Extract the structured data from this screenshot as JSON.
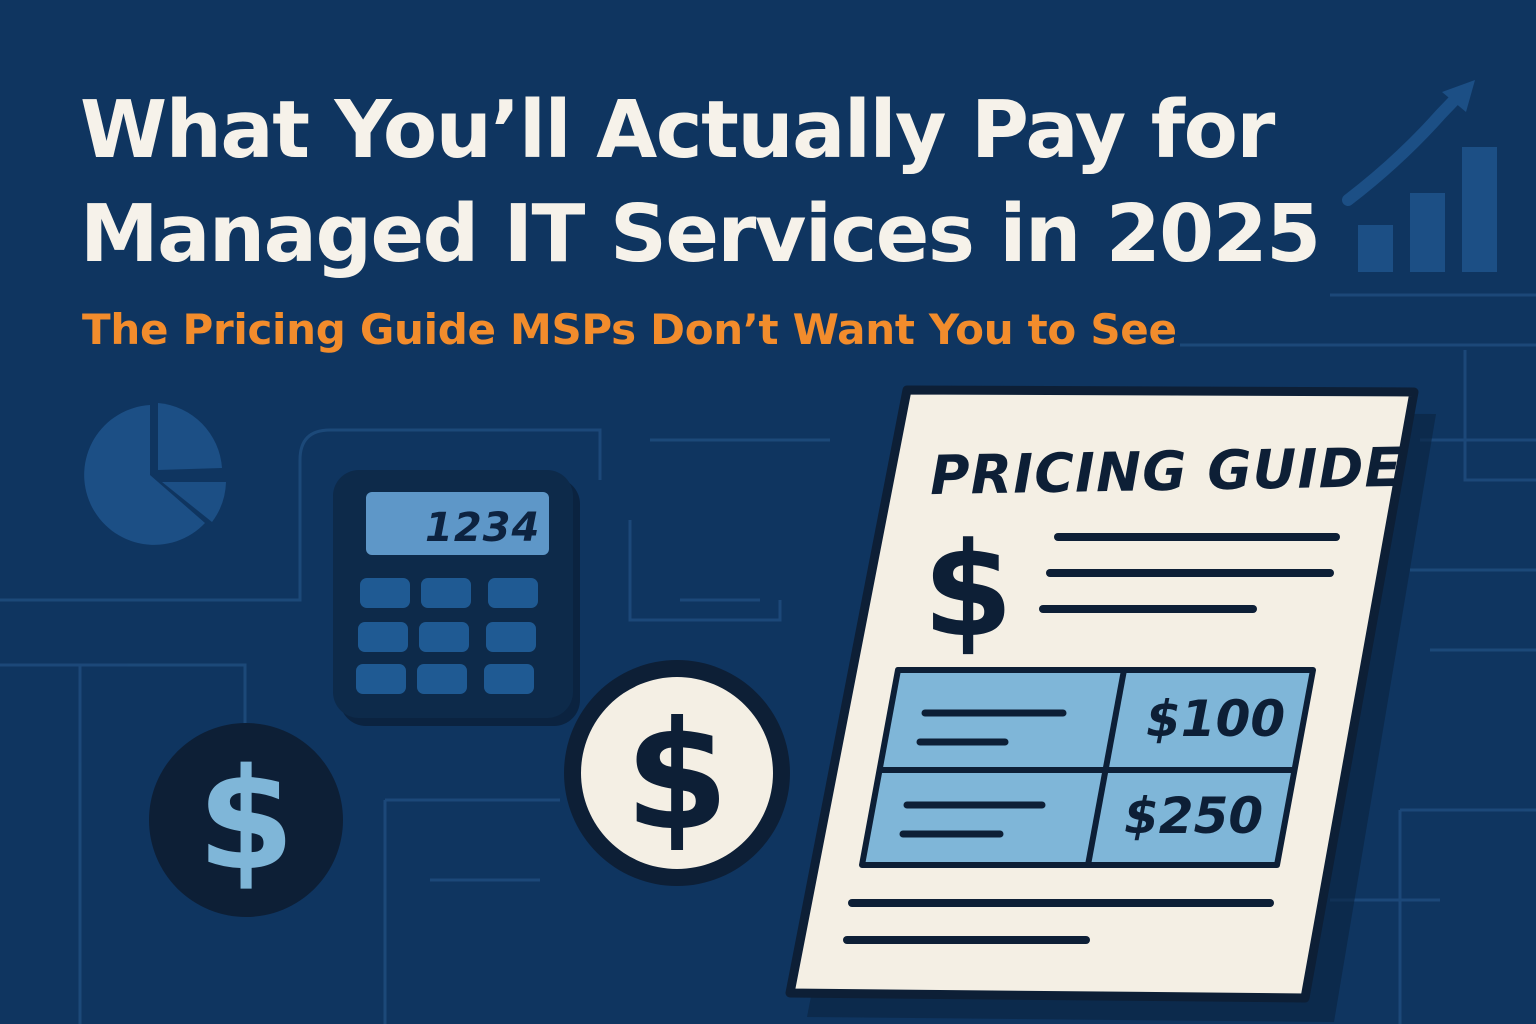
{
  "banner": {
    "headline_line1": "What You’ll Actually Pay for",
    "headline_line2": "Managed IT Services in 2025",
    "subheadline": "The Pricing Guide MSPs Don’t Want You to See"
  },
  "calculator": {
    "display": "1234"
  },
  "document": {
    "title": "PRICING GUIDE",
    "prices": [
      "$100",
      "$250"
    ]
  },
  "icons": [
    "pie-chart-icon",
    "bar-chart-icon",
    "trend-arrow-icon",
    "calculator-icon",
    "dollar-coin-icon",
    "dollar-sign-icon",
    "pricing-document-icon"
  ],
  "colors": {
    "background": "#0f3560",
    "headline": "#f6f2ea",
    "accent": "#f28c2c",
    "light_blue": "#7fb6d8",
    "dark_navy": "#0d1f36"
  }
}
